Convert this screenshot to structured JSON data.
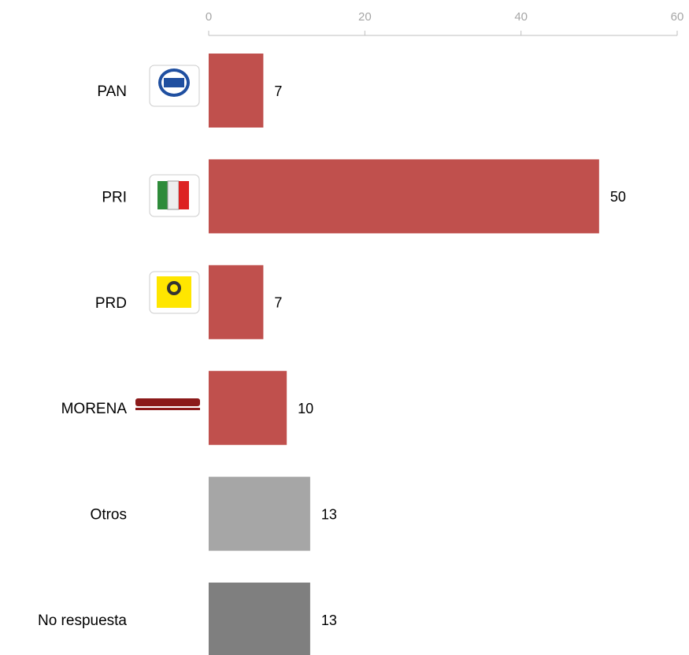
{
  "chart_data": {
    "type": "bar",
    "orientation": "horizontal",
    "categories": [
      "PAN",
      "PRI",
      "PRD",
      "MORENA",
      "Otros",
      "No respuesta"
    ],
    "values": [
      7,
      50,
      7,
      10,
      13,
      13
    ],
    "colors": [
      "#c0504d",
      "#c0504d",
      "#c0504d",
      "#c0504d",
      "#a6a6a6",
      "#7f7f7f"
    ],
    "xlim": [
      0,
      60
    ],
    "xticks": [
      0,
      20,
      40,
      60
    ],
    "grid": false
  }
}
